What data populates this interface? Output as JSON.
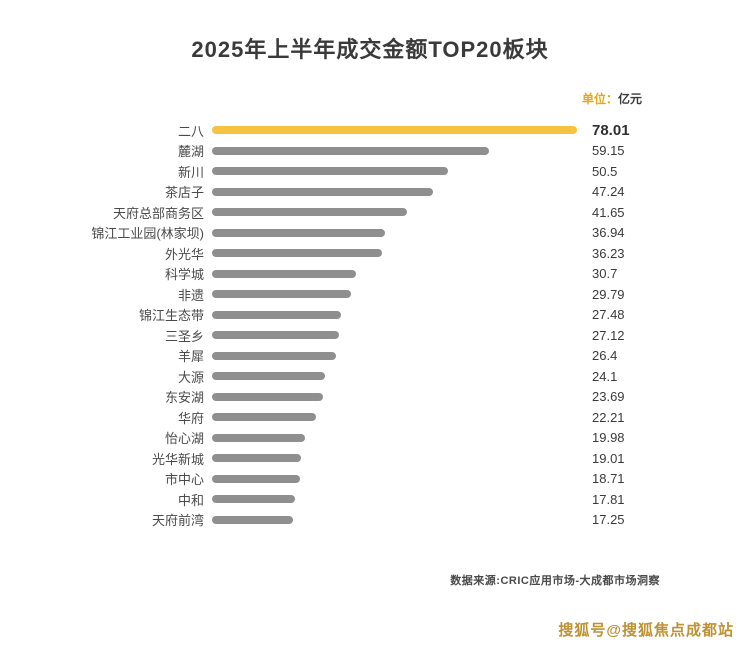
{
  "chart_data": {
    "type": "bar",
    "orientation": "horizontal",
    "title": "2025年上半年成交金额TOP20板块",
    "unit": "单位：亿元",
    "categories": [
      "二八",
      "麓湖",
      "新川",
      "茶店子",
      "天府总部商务区",
      "锦江工业园(林家坝)",
      "外光华",
      "科学城",
      "非遗",
      "锦江生态带",
      "三圣乡",
      "羊犀",
      "大源",
      "东安湖",
      "华府",
      "怡心湖",
      "光华新城",
      "市中心",
      "中和",
      "天府前湾"
    ],
    "values": [
      78.01,
      59.15,
      50.5,
      47.24,
      41.65,
      36.94,
      36.23,
      30.7,
      29.79,
      27.48,
      27.12,
      26.4,
      24.1,
      23.69,
      22.21,
      19.98,
      19.01,
      18.71,
      17.81,
      17.25
    ],
    "value_labels": [
      "78.01",
      "59.15",
      "50.5",
      "47.24",
      "41.65",
      "36.94",
      "36.23",
      "30.7",
      "29.79",
      "27.48",
      "27.12",
      "26.4",
      "24.1",
      "23.69",
      "22.21",
      "19.98",
      "19.01",
      "18.71",
      "17.81",
      "17.25"
    ],
    "xlim": [
      0,
      78.01
    ],
    "highlight_index": 0,
    "colors": {
      "highlight": "#f5c242",
      "bar": "#8f8f8f"
    },
    "legend": false,
    "grid": false
  },
  "unit": {
    "prefix": "单位：",
    "suffix": "亿元"
  },
  "footer": {
    "source": "数据来源:CRIC应用市场-大成都市场洞察"
  },
  "watermark": {
    "text": "搜狐号@搜狐焦点成都站"
  }
}
